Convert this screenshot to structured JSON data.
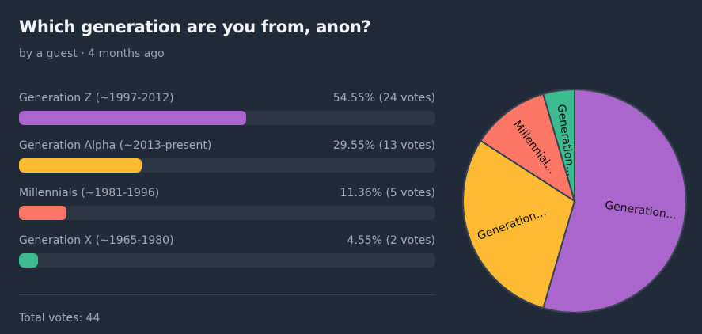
{
  "poll": {
    "title": "Which generation are you from, anon?",
    "meta": "by a guest · 4 months ago",
    "total_votes_label": "Total votes: 44"
  },
  "chart_data": {
    "type": "pie",
    "categories": [
      "Generation Z (~1997-2012)",
      "Generation Alpha (~2013-present)",
      "Millennials (~1981-1996)",
      "Generation X (~1965-1980)"
    ],
    "values": [
      24,
      13,
      5,
      2
    ],
    "percent_labels": [
      "54.55% (24 votes)",
      "29.55% (13 votes)",
      "11.36% (5 votes)",
      "4.55% (2 votes)"
    ],
    "percents": [
      54.55,
      29.55,
      11.36,
      4.55
    ],
    "colors": [
      "#aa66cc",
      "#ffbb33",
      "#ff7766",
      "#3dbb90"
    ],
    "slice_labels": [
      "Generation...",
      "Generation...",
      "Millennial...",
      "Generation..."
    ]
  }
}
